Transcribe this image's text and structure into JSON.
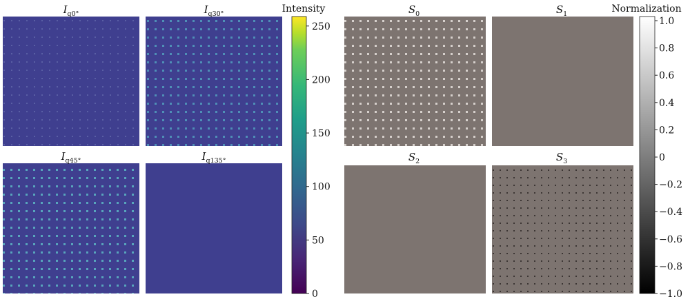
{
  "figure": {
    "left_group": {
      "panels": [
        {
          "id": "iq0",
          "title_main": "I",
          "title_sub": "q0°",
          "dot_level": 0.12
        },
        {
          "id": "iq30",
          "title_main": "I",
          "title_sub": "q30°",
          "dot_level": 0.35
        },
        {
          "id": "iq45",
          "title_main": "I",
          "title_sub": "q45°",
          "dot_level": 0.42
        },
        {
          "id": "iq135",
          "title_main": "I",
          "title_sub": "q135°",
          "dot_level": 0.0
        }
      ],
      "colorbar": {
        "label": "Intensity",
        "colormap": "viridis",
        "range": [
          0,
          255
        ],
        "ticks": [
          "0",
          "50",
          "100",
          "150",
          "200",
          "250"
        ],
        "tick_values": [
          0,
          50,
          100,
          150,
          200,
          250
        ]
      },
      "background_color": "#3f3f8f"
    },
    "right_group": {
      "panels": [
        {
          "id": "s0",
          "title_main": "S",
          "title_sub": "0",
          "dot_tone": "light"
        },
        {
          "id": "s1",
          "title_main": "S",
          "title_sub": "1",
          "dot_tone": "none"
        },
        {
          "id": "s2",
          "title_main": "S",
          "title_sub": "2",
          "dot_tone": "none"
        },
        {
          "id": "s3",
          "title_main": "S",
          "title_sub": "3",
          "dot_tone": "dark"
        }
      ],
      "colorbar": {
        "label": "Normalization",
        "colormap": "gray",
        "range": [
          -1.0,
          1.0
        ],
        "ticks": [
          "−1.0",
          "−0.8",
          "−0.6",
          "−0.4",
          "−0.2",
          "0",
          "0.2",
          "0.4",
          "0.6",
          "0.8",
          "1.0"
        ],
        "tick_values": [
          -1.0,
          -0.8,
          -0.6,
          -0.4,
          -0.2,
          0,
          0.2,
          0.4,
          0.6,
          0.8,
          1.0
        ]
      },
      "background_color": "#7d7470"
    }
  }
}
